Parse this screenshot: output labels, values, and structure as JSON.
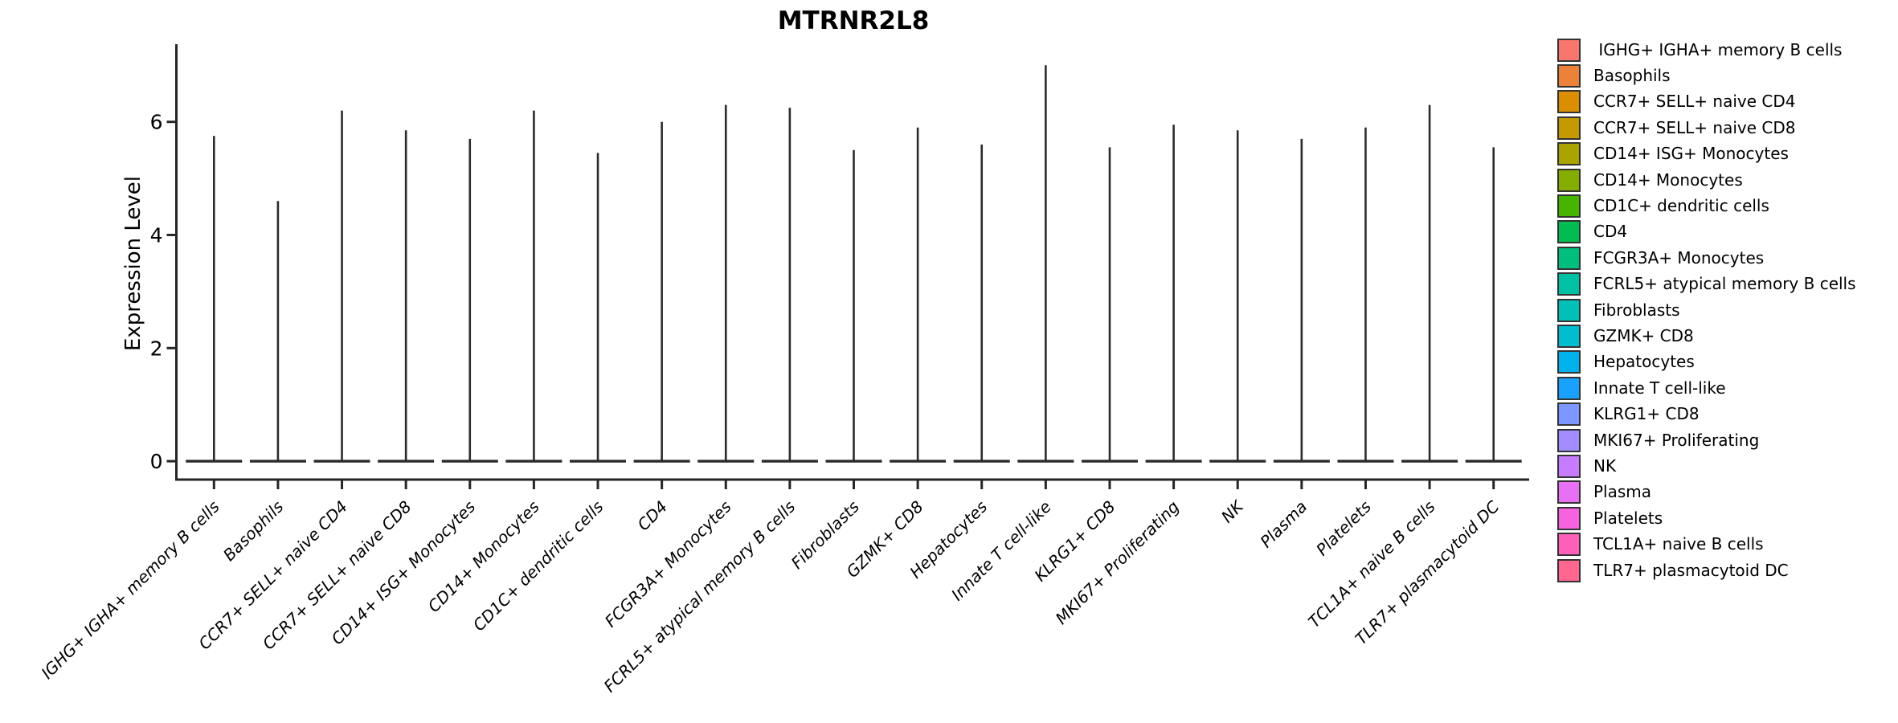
{
  "chart_data": {
    "type": "violin",
    "title": "MTRNR2L8",
    "ylabel": "Expression Level",
    "xlabel": "",
    "yticks": [
      0,
      2,
      4,
      6
    ],
    "ylim": [
      -0.35,
      7.35
    ],
    "grid": false,
    "legend_position": "right",
    "axis_color": "#262626",
    "violin_color": "#2b2b2b",
    "text_color": "#000000",
    "categories": [
      {
        "label": "IGHG+ IGHA+ memory B cells",
        "legend_label": " IGHG+ IGHA+ memory B cells",
        "color": "#F8766D",
        "max_expression": 5.75
      },
      {
        "label": "Basophils",
        "legend_label": "Basophils",
        "color": "#EC8239",
        "max_expression": 4.6
      },
      {
        "label": "CCR7+ SELL+ naive CD4",
        "legend_label": "CCR7+ SELL+ naive CD4",
        "color": "#DA8E00",
        "max_expression": 6.2
      },
      {
        "label": "CCR7+ SELL+ naive CD8",
        "legend_label": "CCR7+ SELL+ naive CD8",
        "color": "#C49A00",
        "max_expression": 5.85
      },
      {
        "label": "CD14+ ISG+ Monocytes",
        "legend_label": "CD14+ ISG+ Monocytes",
        "color": "#ABA300",
        "max_expression": 5.7
      },
      {
        "label": "CD14+ Monocytes",
        "legend_label": "CD14+ Monocytes",
        "color": "#84AD00",
        "max_expression": 6.2
      },
      {
        "label": "CD1C+ dendritic cells",
        "legend_label": "CD1C+ dendritic cells",
        "color": "#45B500",
        "max_expression": 5.45
      },
      {
        "label": "CD4",
        "legend_label": "CD4",
        "color": "#00BC51",
        "max_expression": 6.0
      },
      {
        "label": "FCGR3A+ Monocytes",
        "legend_label": "FCGR3A+ Monocytes",
        "color": "#00BF7D",
        "max_expression": 6.3
      },
      {
        "label": "FCRL5+ atypical memory B cells",
        "legend_label": "FCRL5+ atypical memory B cells",
        "color": "#00C1A4",
        "max_expression": 6.25
      },
      {
        "label": "Fibroblasts",
        "legend_label": "Fibroblasts",
        "color": "#00C0B8",
        "max_expression": 5.5
      },
      {
        "label": "GZMK+ CD8",
        "legend_label": "GZMK+ CD8",
        "color": "#00BDCF",
        "max_expression": 5.9
      },
      {
        "label": "Hepatocytes",
        "legend_label": "Hepatocytes",
        "color": "#00B2EC",
        "max_expression": 5.6
      },
      {
        "label": "Innate T cell-like",
        "legend_label": "Innate T cell-like",
        "color": "#18A1FF",
        "max_expression": 7.0
      },
      {
        "label": "KLRG1+ CD8",
        "legend_label": "KLRG1+ CD8",
        "color": "#7C97FF",
        "max_expression": 5.55
      },
      {
        "label": "MKI67+ Proliferating",
        "legend_label": "MKI67+ Proliferating",
        "color": "#A38CFF",
        "max_expression": 5.95
      },
      {
        "label": "NK",
        "legend_label": "NK",
        "color": "#C77CFF",
        "max_expression": 5.85
      },
      {
        "label": "Plasma",
        "legend_label": "Plasma",
        "color": "#E870F2",
        "max_expression": 5.7
      },
      {
        "label": "Platelets",
        "legend_label": "Platelets",
        "color": "#F763DF",
        "max_expression": 5.9
      },
      {
        "label": "TCL1A+ naive B cells",
        "legend_label": "TCL1A+ naive B cells",
        "color": "#FF61BA",
        "max_expression": 6.3
      },
      {
        "label": "TLR7+ plasmacytoid DC",
        "legend_label": "TLR7+ plasmacytoid DC",
        "color": "#FF6690",
        "max_expression": 5.55
      }
    ]
  }
}
